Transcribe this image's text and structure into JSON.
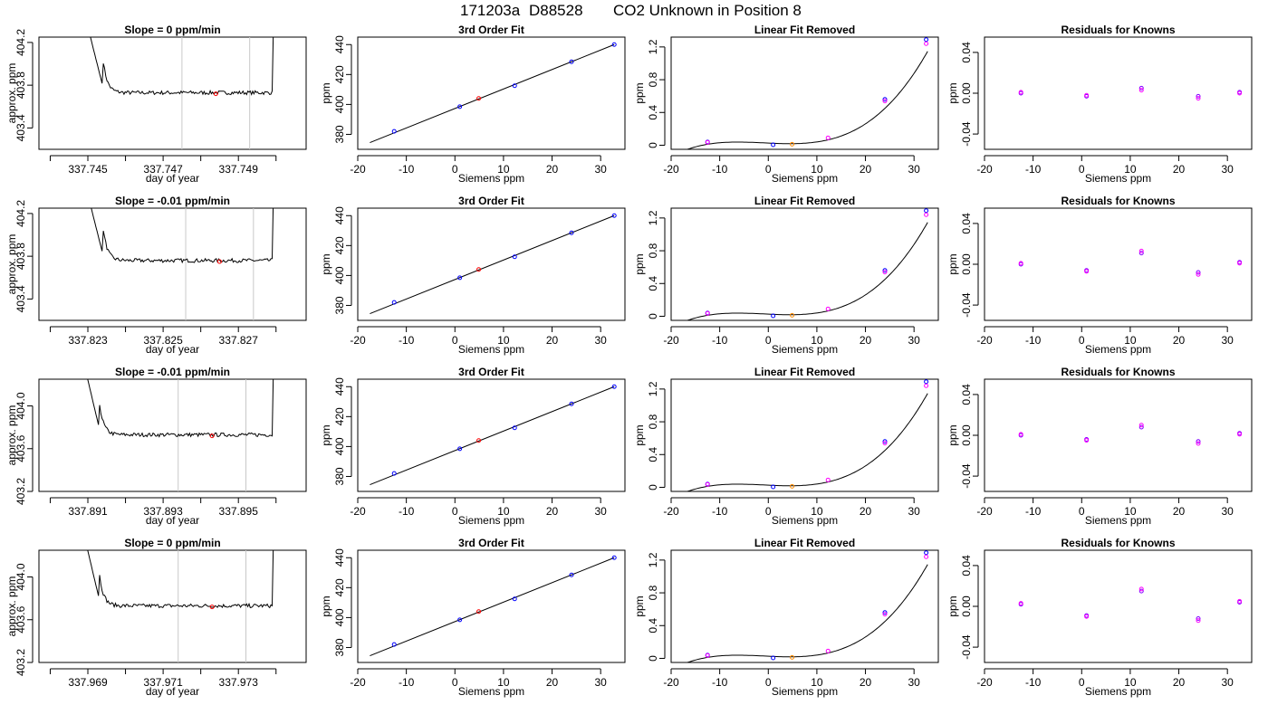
{
  "figure": {
    "run_id": "171203a",
    "tank_id": "D88528",
    "description": "CO2 Unknown in Position  8"
  },
  "chart_data": [
    {
      "type": "line",
      "row": 1,
      "col": 1,
      "title": "Slope =  0  ppm/min",
      "xlabel": "day of year",
      "ylabel": "approx. ppm",
      "xlim": [
        337.7437,
        337.7508
      ],
      "ylim": [
        403.2,
        404.25
      ],
      "xticks": [
        337.744,
        337.745,
        337.746,
        337.747,
        337.748,
        337.749,
        337.75
      ],
      "xtick_labels": [
        "",
        "337.745",
        "",
        "337.747",
        "",
        "337.749",
        ""
      ],
      "yticks": [
        403.4,
        403.8,
        404.2
      ],
      "ytick_labels": [
        "403.4",
        "403.8",
        "404.2"
      ],
      "window": {
        "start": 337.7475,
        "end": 337.7493
      },
      "marker": {
        "x": 337.7484,
        "y": 403.72
      },
      "rise": {
        "start": 337.7454,
        "end": 337.7499
      },
      "plateau": 403.73,
      "noise": 0.018
    },
    {
      "type": "line",
      "row": 2,
      "col": 1,
      "title": "Slope =  -0.01  ppm/min",
      "xlabel": "day of year",
      "ylabel": "approx. ppm",
      "xlim": [
        337.8217,
        337.8288
      ],
      "ylim": [
        403.2,
        404.25
      ],
      "xticks": [
        337.822,
        337.823,
        337.824,
        337.825,
        337.826,
        337.827,
        337.828
      ],
      "xtick_labels": [
        "",
        "337.823",
        "",
        "337.825",
        "",
        "337.827",
        ""
      ],
      "yticks": [
        403.4,
        403.8,
        404.2
      ],
      "ytick_labels": [
        "403.4",
        "403.8",
        "404.2"
      ],
      "window": {
        "start": 337.8256,
        "end": 337.8274
      },
      "marker": {
        "x": 337.8265,
        "y": 403.75
      },
      "rise": {
        "start": 337.8234,
        "end": 337.8279
      },
      "plateau": 403.76,
      "noise": 0.018
    },
    {
      "type": "line",
      "row": 3,
      "col": 1,
      "title": "Slope =  -0.01  ppm/min",
      "xlabel": "day of year",
      "ylabel": "approx. ppm",
      "xlim": [
        337.8897,
        337.8968
      ],
      "ylim": [
        403.2,
        404.25
      ],
      "xticks": [
        337.89,
        337.891,
        337.892,
        337.893,
        337.894,
        337.895,
        337.896
      ],
      "xtick_labels": [
        "",
        "337.891",
        "",
        "337.893",
        "",
        "337.895",
        ""
      ],
      "yticks": [
        403.2,
        403.6,
        404.0
      ],
      "ytick_labels": [
        "403.2",
        "403.6",
        "404.0"
      ],
      "window": {
        "start": 337.8934,
        "end": 337.8952
      },
      "marker": {
        "x": 337.8943,
        "y": 403.72
      },
      "rise": {
        "start": 337.8913,
        "end": 337.8959
      },
      "plateau": 403.73,
      "noise": 0.018
    },
    {
      "type": "line",
      "row": 4,
      "col": 1,
      "title": "Slope =  0  ppm/min",
      "xlabel": "day of year",
      "ylabel": "approx. ppm",
      "xlim": [
        337.9677,
        337.9748
      ],
      "ylim": [
        403.2,
        404.25
      ],
      "xticks": [
        337.968,
        337.969,
        337.97,
        337.971,
        337.972,
        337.973,
        337.974
      ],
      "xtick_labels": [
        "",
        "337.969",
        "",
        "337.971",
        "",
        "337.973",
        ""
      ],
      "yticks": [
        403.2,
        403.6,
        404.0
      ],
      "ytick_labels": [
        "403.2",
        "403.6",
        "404.0"
      ],
      "window": {
        "start": 337.9714,
        "end": 337.9732
      },
      "marker": {
        "x": 337.9723,
        "y": 403.72
      },
      "rise": {
        "start": 337.9693,
        "end": 337.9739
      },
      "plateau": 403.73,
      "noise": 0.018
    },
    {
      "type": "scatter",
      "row": 1,
      "col": 2,
      "title": "3rd Order Fit",
      "xlabel": "Siemens ppm",
      "ylabel": "ppm",
      "xlim": [
        -20,
        35
      ],
      "ylim": [
        370,
        445
      ],
      "xticks": [
        -20,
        -10,
        0,
        10,
        20,
        30
      ],
      "yticks": [
        380,
        400,
        420,
        440
      ],
      "points": [
        [
          -12.5,
          382
        ],
        [
          1,
          398.5
        ],
        [
          12.3,
          412.5
        ],
        [
          24,
          428.5
        ],
        [
          32.8,
          440
        ]
      ],
      "unknown": [
        4.9,
        404
      ],
      "fit": [
        [
          -17.5,
          374.5
        ],
        [
          32.8,
          440
        ]
      ]
    },
    {
      "type": "scatter",
      "row": 2,
      "col": 2,
      "title": "3rd Order Fit",
      "xlabel": "Siemens ppm",
      "ylabel": "ppm",
      "xlim": [
        -20,
        35
      ],
      "ylim": [
        370,
        445
      ],
      "xticks": [
        -20,
        -10,
        0,
        10,
        20,
        30
      ],
      "yticks": [
        380,
        400,
        420,
        440
      ],
      "points": [
        [
          -12.5,
          382
        ],
        [
          1,
          398.5
        ],
        [
          12.3,
          412.5
        ],
        [
          24,
          428.5
        ],
        [
          32.8,
          440
        ]
      ],
      "unknown": [
        4.9,
        404
      ],
      "fit": [
        [
          -17.5,
          374.5
        ],
        [
          32.8,
          440
        ]
      ]
    },
    {
      "type": "scatter",
      "row": 3,
      "col": 2,
      "title": "3rd Order Fit",
      "xlabel": "Siemens ppm",
      "ylabel": "ppm",
      "xlim": [
        -20,
        35
      ],
      "ylim": [
        370,
        445
      ],
      "xticks": [
        -20,
        -10,
        0,
        10,
        20,
        30
      ],
      "yticks": [
        380,
        400,
        420,
        440
      ],
      "points": [
        [
          -12.5,
          382
        ],
        [
          1,
          398.5
        ],
        [
          12.3,
          412.5
        ],
        [
          24,
          428.5
        ],
        [
          32.8,
          440
        ]
      ],
      "unknown": [
        4.9,
        404
      ],
      "fit": [
        [
          -17.5,
          374.5
        ],
        [
          32.8,
          440
        ]
      ]
    },
    {
      "type": "scatter",
      "row": 4,
      "col": 2,
      "title": "3rd Order Fit",
      "xlabel": "Siemens ppm",
      "ylabel": "ppm",
      "xlim": [
        -20,
        35
      ],
      "ylim": [
        370,
        445
      ],
      "xticks": [
        -20,
        -10,
        0,
        10,
        20,
        30
      ],
      "yticks": [
        380,
        400,
        420,
        440
      ],
      "points": [
        [
          -12.5,
          382
        ],
        [
          1,
          398.5
        ],
        [
          12.3,
          412.5
        ],
        [
          24,
          428.5
        ],
        [
          32.8,
          440
        ]
      ],
      "unknown": [
        4.9,
        404
      ],
      "fit": [
        [
          -17.5,
          374.5
        ],
        [
          32.8,
          440
        ]
      ]
    },
    {
      "type": "scatter",
      "row": 1,
      "col": 3,
      "title": "Linear Fit Removed",
      "xlabel": "Siemens ppm",
      "ylabel": "ppm",
      "xlim": [
        -20,
        35
      ],
      "ylim": [
        -0.05,
        1.32
      ],
      "xticks": [
        -20,
        -10,
        0,
        10,
        20,
        30
      ],
      "yticks": [
        0.0,
        0.4,
        0.8,
        1.2
      ],
      "points": [
        [
          -12.5,
          0.04
        ],
        [
          -12.5,
          0.035
        ],
        [
          1,
          0.005
        ],
        [
          12.3,
          0.09
        ],
        [
          24,
          0.56
        ],
        [
          24,
          0.54
        ],
        [
          32.5,
          1.29
        ],
        [
          32.5,
          1.24
        ]
      ],
      "unknown": [
        4.9,
        0.012
      ],
      "curve": {
        "x0": -17.5,
        "x1": 32.8,
        "a": 0.0262,
        "b": -0.00266,
        "c": 8.95e-05,
        "d": 3.15e-05
      }
    },
    {
      "type": "scatter",
      "row": 2,
      "col": 3,
      "title": "Linear Fit Removed",
      "xlabel": "Siemens ppm",
      "ylabel": "ppm",
      "xlim": [
        -20,
        35
      ],
      "ylim": [
        -0.05,
        1.32
      ],
      "xticks": [
        -20,
        -10,
        0,
        10,
        20,
        30
      ],
      "yticks": [
        0.0,
        0.4,
        0.8,
        1.2
      ],
      "points": [
        [
          -12.5,
          0.04
        ],
        [
          -12.5,
          0.035
        ],
        [
          1,
          0.005
        ],
        [
          12.3,
          0.09
        ],
        [
          24,
          0.56
        ],
        [
          24,
          0.54
        ],
        [
          32.5,
          1.29
        ],
        [
          32.5,
          1.24
        ]
      ],
      "unknown": [
        4.9,
        0.012
      ],
      "curve": {
        "x0": -17.5,
        "x1": 32.8,
        "a": 0.0262,
        "b": -0.00266,
        "c": 8.95e-05,
        "d": 3.15e-05
      }
    },
    {
      "type": "scatter",
      "row": 3,
      "col": 3,
      "title": "Linear Fit Removed",
      "xlabel": "Siemens ppm",
      "ylabel": "ppm",
      "xlim": [
        -20,
        35
      ],
      "ylim": [
        -0.05,
        1.32
      ],
      "xticks": [
        -20,
        -10,
        0,
        10,
        20,
        30
      ],
      "yticks": [
        0.0,
        0.4,
        0.8,
        1.2
      ],
      "points": [
        [
          -12.5,
          0.04
        ],
        [
          -12.5,
          0.035
        ],
        [
          1,
          0.005
        ],
        [
          12.3,
          0.09
        ],
        [
          24,
          0.56
        ],
        [
          24,
          0.54
        ],
        [
          32.5,
          1.29
        ],
        [
          32.5,
          1.24
        ]
      ],
      "unknown": [
        4.9,
        0.012
      ],
      "curve": {
        "x0": -17.5,
        "x1": 32.8,
        "a": 0.0262,
        "b": -0.00266,
        "c": 8.95e-05,
        "d": 3.15e-05
      }
    },
    {
      "type": "scatter",
      "row": 4,
      "col": 3,
      "title": "Linear Fit Removed",
      "xlabel": "Siemens ppm",
      "ylabel": "ppm",
      "xlim": [
        -20,
        35
      ],
      "ylim": [
        -0.05,
        1.32
      ],
      "xticks": [
        -20,
        -10,
        0,
        10,
        20,
        30
      ],
      "yticks": [
        0.0,
        0.4,
        0.8,
        1.2
      ],
      "points": [
        [
          -12.5,
          0.04
        ],
        [
          -12.5,
          0.035
        ],
        [
          1,
          0.005
        ],
        [
          12.3,
          0.09
        ],
        [
          24,
          0.56
        ],
        [
          24,
          0.54
        ],
        [
          32.5,
          1.29
        ],
        [
          32.5,
          1.24
        ]
      ],
      "unknown": [
        4.9,
        0.012
      ],
      "curve": {
        "x0": -17.5,
        "x1": 32.8,
        "a": 0.0262,
        "b": -0.00266,
        "c": 8.95e-05,
        "d": 3.15e-05
      }
    },
    {
      "type": "scatter",
      "row": 1,
      "col": 4,
      "title": "Residuals for Knowns",
      "xlabel": "Siemens ppm",
      "ylabel": "ppm",
      "xlim": [
        -20,
        35
      ],
      "ylim": [
        -0.055,
        0.055
      ],
      "xticks": [
        -20,
        -10,
        0,
        10,
        20,
        30
      ],
      "yticks": [
        -0.04,
        0.0,
        0.04
      ],
      "ytick_labels": [
        "-0.04",
        "0.00",
        "0.04"
      ],
      "points": [
        [
          -12.5,
          0.0
        ],
        [
          -12.5,
          0.001
        ],
        [
          1,
          -0.003
        ],
        [
          1,
          -0.002
        ],
        [
          12.3,
          0.005
        ],
        [
          12.3,
          0.003
        ],
        [
          24,
          -0.003
        ],
        [
          24,
          -0.005
        ],
        [
          32.5,
          0.001
        ],
        [
          32.5,
          0.0
        ]
      ]
    },
    {
      "type": "scatter",
      "row": 2,
      "col": 4,
      "title": "Residuals for Knowns",
      "xlabel": "Siemens ppm",
      "ylabel": "ppm",
      "xlim": [
        -20,
        35
      ],
      "ylim": [
        -0.055,
        0.055
      ],
      "xticks": [
        -20,
        -10,
        0,
        10,
        20,
        30
      ],
      "yticks": [
        -0.04,
        0.0,
        0.04
      ],
      "ytick_labels": [
        "-0.04",
        "0.00",
        "0.04"
      ],
      "points": [
        [
          -12.5,
          0.0
        ],
        [
          -12.5,
          0.001
        ],
        [
          1,
          -0.006
        ],
        [
          1,
          -0.007
        ],
        [
          12.3,
          0.011
        ],
        [
          12.3,
          0.013
        ],
        [
          24,
          -0.008
        ],
        [
          24,
          -0.01
        ],
        [
          32.5,
          0.002
        ],
        [
          32.5,
          0.001
        ]
      ]
    },
    {
      "type": "scatter",
      "row": 3,
      "col": 4,
      "title": "Residuals for Knowns",
      "xlabel": "Siemens ppm",
      "ylabel": "ppm",
      "xlim": [
        -20,
        35
      ],
      "ylim": [
        -0.055,
        0.055
      ],
      "xticks": [
        -20,
        -10,
        0,
        10,
        20,
        30
      ],
      "yticks": [
        -0.04,
        0.0,
        0.04
      ],
      "ytick_labels": [
        "-0.04",
        "0.00",
        "0.04"
      ],
      "points": [
        [
          -12.5,
          0.0
        ],
        [
          -12.5,
          0.001
        ],
        [
          1,
          -0.004
        ],
        [
          1,
          -0.005
        ],
        [
          12.3,
          0.008
        ],
        [
          12.3,
          0.01
        ],
        [
          24,
          -0.006
        ],
        [
          24,
          -0.008
        ],
        [
          32.5,
          0.002
        ],
        [
          32.5,
          0.001
        ]
      ]
    },
    {
      "type": "scatter",
      "row": 4,
      "col": 4,
      "title": "Residuals for Knowns",
      "xlabel": "Siemens ppm",
      "ylabel": "ppm",
      "xlim": [
        -20,
        35
      ],
      "ylim": [
        -0.055,
        0.055
      ],
      "xticks": [
        -20,
        -10,
        0,
        10,
        20,
        30
      ],
      "yticks": [
        -0.04,
        0.0,
        0.04
      ],
      "ytick_labels": [
        "-0.04",
        "0.00",
        "0.04"
      ],
      "points": [
        [
          -12.5,
          0.002
        ],
        [
          -12.5,
          0.003
        ],
        [
          1,
          -0.009
        ],
        [
          1,
          -0.01
        ],
        [
          12.3,
          0.015
        ],
        [
          12.3,
          0.017
        ],
        [
          24,
          -0.012
        ],
        [
          24,
          -0.014
        ],
        [
          32.5,
          0.004
        ],
        [
          32.5,
          0.005
        ]
      ]
    }
  ],
  "colors": {
    "axis": "#000000",
    "trace": "#000000",
    "known": "#0000ff",
    "second": "#ff00ff",
    "unknown": "#ff0000",
    "unknown_orange": "#ff8c00",
    "window": "#c8c8c8",
    "purple": "#8000ff"
  }
}
